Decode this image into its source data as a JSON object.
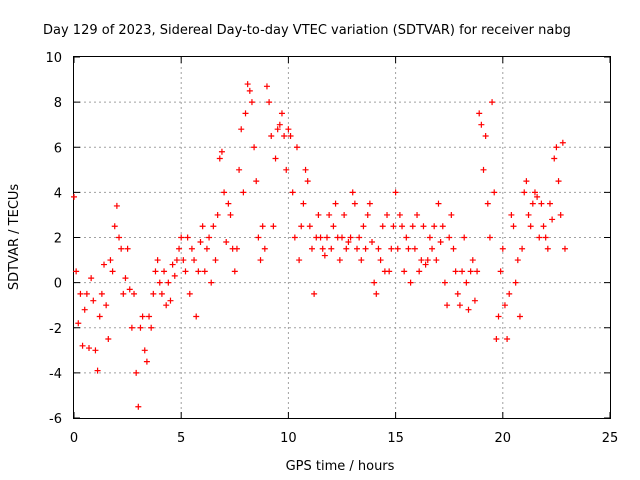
{
  "chart_data": {
    "type": "scatter",
    "title": "Day 129 of 2023, Sidereal Day-to-day VTEC variation (SDTVAR) for receiver nabg",
    "xlabel": "GPS time / hours",
    "ylabel": "SDTVAR / TECUs",
    "xlim": [
      0,
      25
    ],
    "ylim": [
      -6,
      10
    ],
    "xticks": [
      0,
      5,
      10,
      15,
      20,
      25
    ],
    "yticks": [
      -6,
      -4,
      -2,
      0,
      2,
      4,
      6,
      8,
      10
    ],
    "grid": true,
    "marker": "+",
    "color": "#ff0000",
    "series": [
      {
        "name": "SDTVAR",
        "x": [
          0.0,
          0.1,
          0.2,
          0.3,
          0.4,
          0.5,
          0.6,
          0.7,
          0.8,
          0.9,
          1.0,
          1.1,
          1.2,
          1.3,
          1.4,
          1.5,
          1.6,
          1.7,
          1.8,
          1.9,
          2.0,
          2.1,
          2.2,
          2.3,
          2.4,
          2.5,
          2.6,
          2.7,
          2.8,
          2.9,
          3.0,
          3.1,
          3.2,
          3.3,
          3.4,
          3.5,
          3.6,
          3.7,
          3.8,
          3.9,
          4.0,
          4.1,
          4.2,
          4.3,
          4.4,
          4.5,
          4.6,
          4.7,
          4.8,
          4.9,
          5.0,
          5.1,
          5.2,
          5.3,
          5.4,
          5.5,
          5.6,
          5.7,
          5.8,
          5.9,
          6.0,
          6.1,
          6.2,
          6.3,
          6.4,
          6.5,
          6.6,
          6.7,
          6.8,
          6.9,
          7.0,
          7.1,
          7.2,
          7.3,
          7.4,
          7.5,
          7.6,
          7.7,
          7.8,
          7.9,
          8.0,
          8.1,
          8.2,
          8.3,
          8.4,
          8.5,
          8.6,
          8.7,
          8.8,
          8.9,
          9.0,
          9.1,
          9.2,
          9.3,
          9.4,
          9.5,
          9.6,
          9.7,
          9.8,
          9.9,
          10.0,
          10.1,
          10.2,
          10.3,
          10.4,
          10.5,
          10.6,
          10.7,
          10.8,
          10.9,
          11.0,
          11.1,
          11.2,
          11.3,
          11.4,
          11.5,
          11.6,
          11.7,
          11.8,
          11.9,
          12.0,
          12.1,
          12.2,
          12.3,
          12.4,
          12.5,
          12.6,
          12.7,
          12.8,
          12.9,
          13.0,
          13.1,
          13.2,
          13.3,
          13.4,
          13.5,
          13.6,
          13.7,
          13.8,
          13.9,
          14.0,
          14.1,
          14.2,
          14.3,
          14.4,
          14.5,
          14.6,
          14.7,
          14.8,
          14.9,
          15.0,
          15.1,
          15.2,
          15.3,
          15.4,
          15.5,
          15.6,
          15.7,
          15.8,
          15.9,
          16.0,
          16.1,
          16.2,
          16.3,
          16.4,
          16.5,
          16.6,
          16.7,
          16.8,
          16.9,
          17.0,
          17.1,
          17.2,
          17.3,
          17.4,
          17.5,
          17.6,
          17.7,
          17.8,
          17.9,
          18.0,
          18.1,
          18.2,
          18.3,
          18.4,
          18.5,
          18.6,
          18.7,
          18.8,
          18.9,
          19.0,
          19.1,
          19.2,
          19.3,
          19.4,
          19.5,
          19.6,
          19.7,
          19.8,
          19.9,
          20.0,
          20.1,
          20.2,
          20.3,
          20.4,
          20.5,
          20.6,
          20.7,
          20.8,
          20.9,
          21.0,
          21.1,
          21.2,
          21.3,
          21.4,
          21.5,
          21.6,
          21.7,
          21.8,
          21.9,
          22.0,
          22.1,
          22.2,
          22.3,
          22.4,
          22.5,
          22.6,
          22.7,
          22.8,
          22.9
        ],
        "y": [
          3.8,
          0.5,
          -1.8,
          -0.5,
          -2.8,
          -1.2,
          -0.5,
          -2.9,
          0.2,
          -0.8,
          -3.0,
          -3.9,
          -1.5,
          -0.5,
          0.8,
          -1.0,
          -2.5,
          1.0,
          0.5,
          2.5,
          3.4,
          2.0,
          1.5,
          -0.5,
          0.2,
          1.5,
          -0.3,
          -2.0,
          -0.5,
          -4.0,
          -5.5,
          -2.0,
          -1.5,
          -3.0,
          -3.5,
          -1.5,
          -2.0,
          -0.5,
          0.5,
          1.0,
          0.0,
          -0.5,
          0.5,
          -1.0,
          0.0,
          -0.8,
          0.8,
          0.3,
          1.0,
          1.5,
          2.0,
          1.0,
          0.5,
          2.0,
          -0.5,
          1.5,
          1.0,
          -1.5,
          0.5,
          1.8,
          2.5,
          0.5,
          1.5,
          2.0,
          0.0,
          2.5,
          1.0,
          3.0,
          5.5,
          5.8,
          4.0,
          1.8,
          3.5,
          3.0,
          1.5,
          0.5,
          1.5,
          5.0,
          6.8,
          4.0,
          7.5,
          8.8,
          8.5,
          8.0,
          6.0,
          4.5,
          2.0,
          1.0,
          2.5,
          1.5,
          8.7,
          8.0,
          6.5,
          2.5,
          5.5,
          6.8,
          7.0,
          7.5,
          6.5,
          5.0,
          6.8,
          6.5,
          4.0,
          2.0,
          6.0,
          1.0,
          2.5,
          3.5,
          5.0,
          4.5,
          2.5,
          1.5,
          -0.5,
          2.0,
          3.0,
          2.0,
          1.5,
          1.2,
          2.0,
          3.0,
          1.5,
          2.5,
          3.5,
          2.0,
          1.0,
          2.0,
          3.0,
          1.5,
          1.8,
          2.0,
          4.0,
          3.5,
          1.5,
          2.0,
          1.0,
          2.5,
          1.5,
          3.0,
          3.5,
          1.8,
          0.0,
          -0.5,
          1.5,
          1.0,
          2.5,
          0.5,
          3.0,
          0.5,
          1.5,
          2.5,
          4.0,
          1.5,
          3.0,
          2.5,
          0.5,
          2.0,
          1.5,
          0.0,
          2.5,
          1.5,
          3.0,
          0.5,
          1.0,
          2.5,
          0.8,
          1.0,
          2.0,
          1.5,
          2.5,
          1.0,
          3.5,
          1.8,
          2.5,
          0.0,
          -1.0,
          2.0,
          3.0,
          1.5,
          0.5,
          -0.5,
          -1.0,
          0.5,
          2.0,
          0.0,
          -1.2,
          0.5,
          1.0,
          -0.8,
          0.5,
          7.5,
          7.0,
          5.0,
          6.5,
          3.5,
          2.0,
          8.0,
          4.0,
          -2.5,
          -1.5,
          0.5,
          1.5,
          -1.0,
          -2.5,
          -0.5,
          3.0,
          2.5,
          0.0,
          1.0,
          -1.5,
          1.5,
          4.0,
          4.5,
          3.0,
          2.5,
          3.5,
          4.0,
          3.8,
          2.0,
          3.5,
          2.5,
          2.0,
          1.5,
          3.5,
          2.8,
          5.5,
          6.0,
          4.5,
          3.0,
          6.2,
          1.5
        ]
      }
    ]
  }
}
